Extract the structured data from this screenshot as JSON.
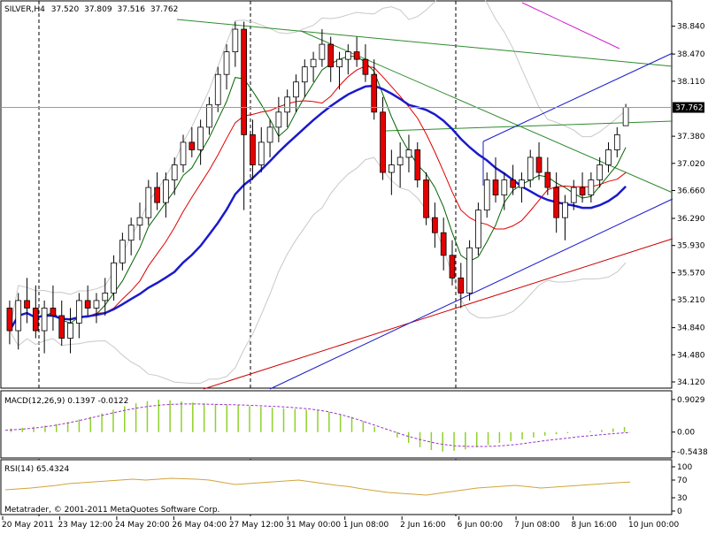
{
  "header": {
    "symbol": "SILVER,H4",
    "open": "37.520",
    "high": "37.809",
    "low": "37.516",
    "close": "37.762"
  },
  "footer": {
    "copyright": "Metatrader, © 2001-2011 MetaQuotes Software Corp."
  },
  "macd_panel": {
    "label": "MACD(12,26,9) 0.1397 -0.0122"
  },
  "rsi_panel": {
    "label": "RSI(14) 65.4324"
  },
  "colors": {
    "bull": "#ffffff",
    "bear": "#e60000",
    "wick": "#000000",
    "ma_fast": "#006400",
    "ma_mid": "#e00000",
    "ma_slow": "#1a1acc",
    "bands": "#c8c8c8",
    "macd_hist": "#8fd12a",
    "macd_signal": "#9a32cd",
    "rsi": "#d2a43c",
    "grid_dash": "#000000"
  },
  "chart_data": [
    {
      "type": "candlestick",
      "title": "SILVER,H4",
      "ylim": [
        34.12,
        39.0
      ],
      "y_ticks": [
        "38.840",
        "38.470",
        "38.110",
        "37.762",
        "37.380",
        "37.020",
        "36.660",
        "36.290",
        "35.930",
        "35.570",
        "35.210",
        "34.840",
        "34.480",
        "34.120"
      ],
      "x_ticks": [
        "20 May 2011",
        "23 May 12:00",
        "24 May 20:00",
        "26 May 04:00",
        "27 May 12:00",
        "31 May 00:00",
        "1 Jun 08:00",
        "2 Jun 16:00",
        "6 Jun 00:00",
        "7 Jun 08:00",
        "8 Jun 16:00",
        "10 Jun 00:00"
      ],
      "last_price_label": "37.762",
      "candles": [
        [
          35.1,
          35.2,
          34.62,
          34.8
        ],
        [
          34.8,
          35.3,
          34.55,
          35.2
        ],
        [
          35.2,
          35.5,
          34.9,
          35.1
        ],
        [
          35.1,
          35.4,
          34.7,
          34.8
        ],
        [
          34.8,
          35.2,
          34.5,
          35.1
        ],
        [
          35.1,
          35.4,
          34.8,
          35.0
        ],
        [
          35.0,
          35.2,
          34.6,
          34.7
        ],
        [
          34.7,
          35.1,
          34.5,
          34.9
        ],
        [
          34.9,
          35.3,
          34.7,
          35.2
        ],
        [
          35.2,
          35.4,
          35.0,
          35.1
        ],
        [
          35.1,
          35.3,
          34.9,
          35.2
        ],
        [
          35.2,
          35.5,
          35.0,
          35.3
        ],
        [
          35.3,
          35.8,
          35.2,
          35.7
        ],
        [
          35.7,
          36.1,
          35.6,
          36.0
        ],
        [
          36.0,
          36.3,
          35.8,
          36.2
        ],
        [
          36.2,
          36.5,
          36.0,
          36.3
        ],
        [
          36.3,
          36.8,
          36.2,
          36.7
        ],
        [
          36.7,
          36.9,
          36.4,
          36.5
        ],
        [
          36.5,
          36.9,
          36.3,
          36.8
        ],
        [
          36.8,
          37.1,
          36.6,
          37.0
        ],
        [
          37.0,
          37.4,
          36.9,
          37.3
        ],
        [
          37.3,
          37.5,
          37.1,
          37.2
        ],
        [
          37.2,
          37.6,
          37.0,
          37.5
        ],
        [
          37.5,
          37.9,
          37.4,
          37.8
        ],
        [
          37.8,
          38.3,
          37.7,
          38.2
        ],
        [
          38.2,
          38.6,
          38.0,
          38.5
        ],
        [
          38.5,
          38.9,
          38.3,
          38.8
        ],
        [
          38.8,
          38.9,
          36.4,
          37.4
        ],
        [
          37.4,
          37.6,
          36.8,
          37.0
        ],
        [
          37.0,
          37.5,
          36.9,
          37.3
        ],
        [
          37.3,
          37.6,
          37.1,
          37.5
        ],
        [
          37.5,
          37.9,
          37.3,
          37.7
        ],
        [
          37.7,
          38.0,
          37.5,
          37.9
        ],
        [
          37.9,
          38.2,
          37.7,
          38.1
        ],
        [
          38.1,
          38.4,
          37.9,
          38.3
        ],
        [
          38.3,
          38.5,
          38.1,
          38.4
        ],
        [
          38.4,
          38.8,
          38.3,
          38.6
        ],
        [
          38.6,
          38.7,
          38.1,
          38.3
        ],
        [
          38.3,
          38.5,
          38.0,
          38.4
        ],
        [
          38.4,
          38.6,
          38.2,
          38.5
        ],
        [
          38.5,
          38.7,
          38.3,
          38.4
        ],
        [
          38.4,
          38.6,
          38.1,
          38.2
        ],
        [
          38.2,
          38.4,
          37.6,
          37.7
        ],
        [
          37.7,
          37.9,
          36.8,
          36.9
        ],
        [
          36.9,
          37.2,
          36.6,
          37.0
        ],
        [
          37.0,
          37.3,
          36.7,
          37.1
        ],
        [
          37.1,
          37.4,
          36.9,
          37.2
        ],
        [
          37.2,
          37.3,
          36.7,
          36.8
        ],
        [
          36.8,
          36.9,
          36.2,
          36.3
        ],
        [
          36.3,
          36.5,
          35.9,
          36.1
        ],
        [
          36.1,
          36.3,
          35.6,
          35.8
        ],
        [
          35.8,
          36.0,
          35.4,
          35.5
        ],
        [
          35.5,
          35.7,
          35.1,
          35.3
        ],
        [
          35.3,
          36.0,
          35.2,
          35.9
        ],
        [
          35.9,
          36.5,
          35.8,
          36.4
        ],
        [
          36.4,
          36.9,
          36.3,
          36.8
        ],
        [
          36.8,
          37.1,
          36.5,
          36.6
        ],
        [
          36.6,
          36.9,
          36.4,
          36.8
        ],
        [
          36.8,
          37.0,
          36.6,
          36.7
        ],
        [
          36.7,
          36.9,
          36.5,
          36.8
        ],
        [
          36.8,
          37.2,
          36.7,
          37.1
        ],
        [
          37.1,
          37.3,
          36.8,
          36.9
        ],
        [
          36.9,
          37.1,
          36.6,
          36.7
        ],
        [
          36.7,
          36.9,
          36.1,
          36.3
        ],
        [
          36.3,
          36.6,
          36.0,
          36.5
        ],
        [
          36.5,
          36.8,
          36.4,
          36.7
        ],
        [
          36.7,
          36.9,
          36.5,
          36.6
        ],
        [
          36.6,
          36.9,
          36.5,
          36.8
        ],
        [
          36.8,
          37.1,
          36.7,
          37.0
        ],
        [
          37.0,
          37.3,
          36.9,
          37.2
        ],
        [
          37.2,
          37.5,
          37.1,
          37.4
        ],
        [
          37.52,
          37.809,
          37.516,
          37.762
        ]
      ]
    },
    {
      "type": "histogram+line",
      "title": "MACD(12,26,9)",
      "value_macd": 0.1397,
      "value_signal": -0.0122,
      "ylim": [
        -0.62,
        0.95
      ],
      "y_ticks": [
        "0.9029",
        "0.00",
        "-0.5438"
      ],
      "histogram": [
        0.1,
        0.12,
        0.15,
        0.18,
        0.22,
        0.28,
        0.35,
        0.42,
        0.52,
        0.62,
        0.72,
        0.8,
        0.86,
        0.9,
        0.88,
        0.85,
        0.82,
        0.8,
        0.78,
        0.76,
        0.74,
        0.72,
        0.7,
        0.68,
        0.66,
        0.64,
        0.62,
        0.6,
        0.56,
        0.5,
        0.42,
        0.3,
        0.15,
        0.0,
        -0.15,
        -0.3,
        -0.42,
        -0.5,
        -0.54,
        -0.52,
        -0.48,
        -0.42,
        -0.36,
        -0.3,
        -0.25,
        -0.2,
        -0.15,
        -0.1,
        -0.06,
        -0.03,
        0.0,
        0.03,
        0.06,
        0.1,
        0.14
      ],
      "signal": [
        0.05,
        0.08,
        0.12,
        0.18,
        0.26,
        0.36,
        0.46,
        0.56,
        0.65,
        0.72,
        0.76,
        0.78,
        0.78,
        0.77,
        0.76,
        0.75,
        0.73,
        0.71,
        0.68,
        0.64,
        0.58,
        0.48,
        0.35,
        0.2,
        0.05,
        -0.1,
        -0.22,
        -0.32,
        -0.38,
        -0.4,
        -0.4,
        -0.38,
        -0.34,
        -0.28,
        -0.22,
        -0.17,
        -0.12,
        -0.08,
        -0.04,
        -0.01
      ]
    },
    {
      "type": "line",
      "title": "RSI(14)",
      "value": 65.4324,
      "ylim": [
        0,
        100
      ],
      "y_ticks": [
        "100",
        "70",
        "30",
        "0"
      ],
      "values": [
        48,
        50,
        52,
        55,
        58,
        62,
        64,
        66,
        68,
        70,
        72,
        70,
        72,
        74,
        73,
        72,
        70,
        65,
        60,
        62,
        64,
        66,
        68,
        70,
        66,
        62,
        58,
        55,
        50,
        46,
        42,
        40,
        38,
        36,
        40,
        44,
        48,
        52,
        54,
        56,
        58,
        55,
        52,
        54,
        56,
        58,
        60,
        62,
        64,
        65.43
      ]
    }
  ]
}
